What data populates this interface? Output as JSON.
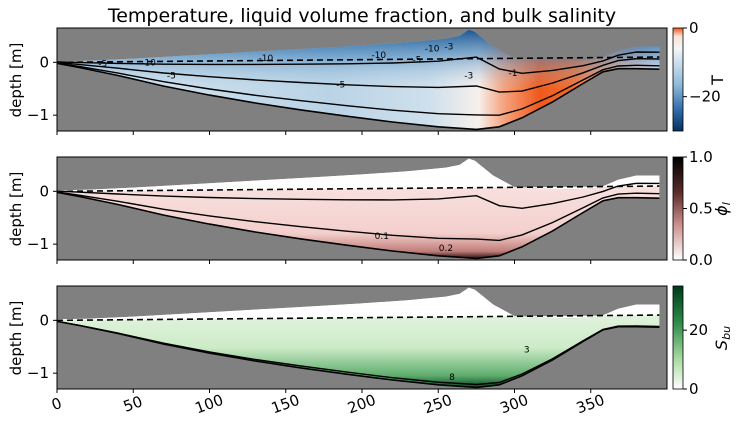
{
  "chart_data": [
    {
      "type": "heatmap",
      "title": "Temperature, liquid volume fraction, and bulk salinity",
      "xlabel": "",
      "ylabel": "depth [m]",
      "colorbar_label": "T",
      "colormap": "RdBu_r (blue cold, red warm)",
      "colorbar_range": [
        -30,
        0
      ],
      "colorbar_ticks": [
        {
          "v": 0,
          "t": "0"
        },
        {
          "v": -20,
          "t": "−20"
        }
      ],
      "xlim": [
        0,
        400
      ],
      "ylim": [
        -1.3,
        0.65
      ],
      "yticks": [
        {
          "v": 0,
          "t": "0"
        },
        {
          "v": -1,
          "t": "−1"
        }
      ],
      "contour_labels": [
        {
          "x": 30,
          "y": -0.02,
          "t": "-5"
        },
        {
          "x": 60,
          "y": 0.0,
          "t": "-10"
        },
        {
          "x": 75,
          "y": -0.25,
          "t": "-5"
        },
        {
          "x": 137,
          "y": 0.08,
          "t": "-10"
        },
        {
          "x": 186,
          "y": -0.42,
          "t": "-5"
        },
        {
          "x": 211,
          "y": 0.14,
          "t": "-10"
        },
        {
          "x": 236,
          "y": 0.05,
          "t": "-5"
        },
        {
          "x": 246,
          "y": 0.26,
          "t": "-10"
        },
        {
          "x": 257,
          "y": 0.3,
          "t": "-3"
        },
        {
          "x": 270,
          "y": -0.25,
          "t": "-3"
        },
        {
          "x": 299,
          "y": -0.2,
          "t": "-1"
        }
      ]
    },
    {
      "type": "heatmap",
      "title": "",
      "xlabel": "",
      "ylabel": "depth [m]",
      "colorbar_label": "φl",
      "colormap": "white to dark red to black",
      "colorbar_range": [
        0,
        1
      ],
      "colorbar_ticks": [
        {
          "v": 1,
          "t": "1.0"
        },
        {
          "v": 0.5,
          "t": "0.5"
        },
        {
          "v": 0,
          "t": "0.0"
        }
      ],
      "xlim": [
        0,
        400
      ],
      "ylim": [
        -1.3,
        0.65
      ],
      "yticks": [
        {
          "v": 0,
          "t": "0"
        },
        {
          "v": -1,
          "t": "−1"
        }
      ],
      "contour_labels": [
        {
          "x": 213,
          "y": -0.85,
          "t": "0.1"
        },
        {
          "x": 255,
          "y": -1.07,
          "t": "0.2"
        }
      ]
    },
    {
      "type": "heatmap",
      "title": "",
      "xlabel": "",
      "ylabel": "depth [m]",
      "colorbar_label": "Sbu",
      "colormap": "Greens (white to dark green)",
      "colorbar_range": [
        0,
        35
      ],
      "colorbar_ticks": [
        {
          "v": 20,
          "t": "20"
        },
        {
          "v": 0,
          "t": "0"
        }
      ],
      "xlim": [
        0,
        400
      ],
      "ylim": [
        -1.3,
        0.65
      ],
      "yticks": [
        {
          "v": 0,
          "t": "0"
        },
        {
          "v": -1,
          "t": "−1"
        }
      ],
      "xticks": [
        {
          "v": 0,
          "t": "0"
        },
        {
          "v": 50,
          "t": "50"
        },
        {
          "v": 100,
          "t": "100"
        },
        {
          "v": 150,
          "t": "150"
        },
        {
          "v": 200,
          "t": "200"
        },
        {
          "v": 250,
          "t": "250"
        },
        {
          "v": 300,
          "t": "300"
        },
        {
          "v": 350,
          "t": "350"
        }
      ],
      "contour_labels": [
        {
          "x": 308,
          "y": -0.55,
          "t": "3"
        },
        {
          "x": 259,
          "y": -1.07,
          "t": "8"
        }
      ]
    }
  ],
  "shape": {
    "ice_bottom": [
      [
        0,
        -0.02
      ],
      [
        15,
        -0.1
      ],
      [
        40,
        -0.25
      ],
      [
        70,
        -0.45
      ],
      [
        100,
        -0.62
      ],
      [
        130,
        -0.77
      ],
      [
        160,
        -0.9
      ],
      [
        190,
        -1.02
      ],
      [
        220,
        -1.13
      ],
      [
        250,
        -1.22
      ],
      [
        275,
        -1.27
      ],
      [
        290,
        -1.22
      ],
      [
        305,
        -1.05
      ],
      [
        325,
        -0.75
      ],
      [
        345,
        -0.4
      ],
      [
        358,
        -0.18
      ],
      [
        368,
        -0.12
      ],
      [
        380,
        -0.12
      ],
      [
        395,
        -0.13
      ]
    ],
    "ice_top": [
      [
        0,
        0.02
      ],
      [
        20,
        0.03
      ],
      [
        50,
        0.07
      ],
      [
        80,
        0.12
      ],
      [
        110,
        0.17
      ],
      [
        140,
        0.22
      ],
      [
        170,
        0.27
      ],
      [
        200,
        0.32
      ],
      [
        230,
        0.38
      ],
      [
        255,
        0.45
      ],
      [
        264,
        0.5
      ],
      [
        270,
        0.62
      ],
      [
        274,
        0.58
      ],
      [
        286,
        0.3
      ],
      [
        300,
        0.08
      ],
      [
        320,
        0.05
      ],
      [
        340,
        0.04
      ],
      [
        356,
        0.07
      ],
      [
        368,
        0.22
      ],
      [
        380,
        0.3
      ],
      [
        395,
        0.3
      ]
    ],
    "waterline": [
      [
        0,
        0.0
      ],
      [
        395,
        0.1
      ]
    ]
  }
}
